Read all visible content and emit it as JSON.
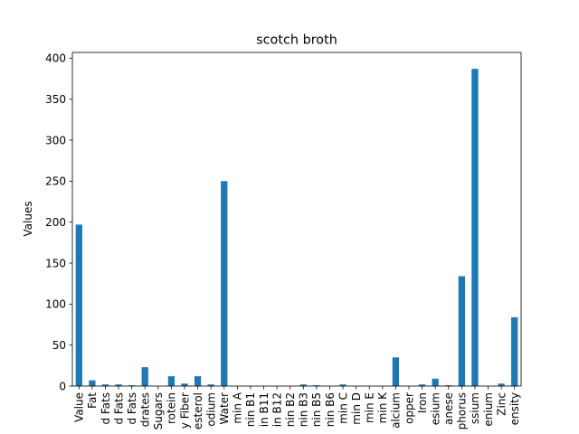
{
  "chart_data": {
    "type": "bar",
    "title": "scotch broth",
    "xlabel": "",
    "ylabel": "Values",
    "ylim": [
      0,
      407
    ],
    "yticks": [
      0,
      50,
      100,
      150,
      200,
      250,
      300,
      350,
      400
    ],
    "grid": false,
    "bar_color": "#1f77b4",
    "categories": [
      "Value",
      "Fat",
      "d Fats",
      "d Fats",
      "d Fats",
      "drates",
      "Sugars",
      "rotein",
      "y Fiber",
      "esterol",
      "odium",
      "Water",
      "min A",
      "nin B1",
      "in B11",
      "in B12",
      "nin B2",
      "nin B3",
      "nin B5",
      "nin B6",
      "min C",
      "min D",
      "min E",
      "min K",
      "alcium",
      "opper",
      "Iron",
      "esium",
      "anese",
      "phorus",
      "ssium",
      "enium",
      "Zinc",
      "ensity"
    ],
    "values": [
      197,
      7,
      2,
      2,
      1,
      23,
      0,
      12,
      3,
      12,
      2,
      250,
      0,
      0,
      0,
      0,
      0,
      2,
      1,
      0,
      2,
      0,
      0,
      0,
      35,
      0,
      2,
      9,
      1,
      134,
      387,
      0,
      3,
      84
    ]
  }
}
